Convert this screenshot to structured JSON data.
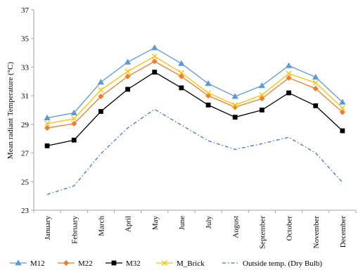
{
  "chart_data": {
    "type": "line",
    "title": "",
    "xlabel": "",
    "ylabel": "Mean radiant Temperature (°C)",
    "ylim": [
      23,
      37
    ],
    "yticks": [
      23,
      25,
      27,
      29,
      31,
      33,
      35,
      37
    ],
    "grid": false,
    "legend_position": "bottom",
    "categories": [
      "January",
      "February",
      "March",
      "April",
      "May",
      "June",
      "July",
      "August",
      "September",
      "October",
      "November",
      "December"
    ],
    "series": [
      {
        "name": "M12",
        "color": "#5b9bd5",
        "marker": "triangle",
        "dash": "solid",
        "values": [
          29.45,
          29.8,
          31.95,
          33.35,
          34.35,
          33.25,
          31.85,
          30.95,
          31.7,
          33.1,
          32.3,
          30.55
        ]
      },
      {
        "name": "M22",
        "color": "#ed7d31",
        "marker": "diamond",
        "dash": "solid",
        "values": [
          28.75,
          29.05,
          30.95,
          32.35,
          33.4,
          32.35,
          31.0,
          30.2,
          30.8,
          32.25,
          31.5,
          29.85
        ]
      },
      {
        "name": "M32",
        "color": "#000000",
        "marker": "square",
        "dash": "solid",
        "values": [
          27.5,
          27.9,
          29.9,
          31.45,
          32.65,
          31.55,
          30.35,
          29.5,
          30.0,
          31.2,
          30.3,
          28.55
        ]
      },
      {
        "name": "M_Brick",
        "color": "#ffc000",
        "marker": "x",
        "dash": "solid",
        "values": [
          29.05,
          29.4,
          31.4,
          32.7,
          33.75,
          32.6,
          31.2,
          30.35,
          31.05,
          32.55,
          31.9,
          30.15
        ]
      },
      {
        "name": "Outside temp. (Dry Bulb)",
        "color": "#4472c4",
        "marker": "none",
        "dash": "dashdot",
        "values": [
          24.1,
          24.7,
          26.95,
          28.75,
          30.05,
          28.95,
          27.85,
          27.25,
          27.65,
          28.1,
          27.0,
          24.95
        ]
      }
    ]
  }
}
